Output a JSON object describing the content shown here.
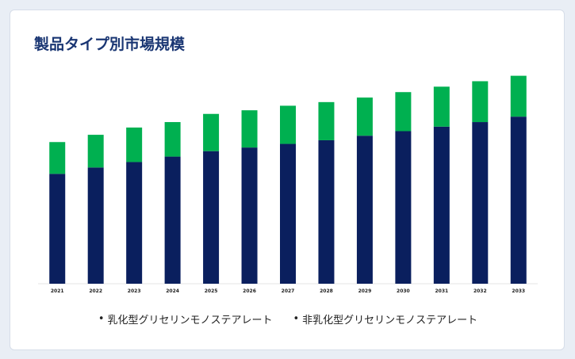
{
  "colors": {
    "accent": "#1a3673",
    "series1": "#0a1f5e",
    "series2": "#00b050"
  },
  "chart_data": {
    "type": "bar",
    "stacked": true,
    "title": "製品タイプ別市場規模",
    "categories": [
      "2021",
      "2022",
      "2023",
      "2024",
      "2025",
      "2026",
      "2027",
      "2028",
      "2029",
      "2030",
      "2031",
      "2032",
      "2033"
    ],
    "series": [
      {
        "name": "乳化型グリセリンモノステアレート",
        "color": "#0a1f5e",
        "values": [
          121,
          128,
          134,
          140,
          146,
          150,
          154,
          158,
          163,
          168,
          173,
          178,
          184
        ]
      },
      {
        "name": "非乳化型グリセリンモノステアレート",
        "color": "#00b050",
        "values": [
          35,
          36,
          38,
          38,
          41,
          41,
          42,
          42,
          42,
          43,
          44,
          45,
          45
        ]
      }
    ],
    "ylim": [
      0,
      240
    ],
    "grid": false,
    "legend": "bottom"
  }
}
